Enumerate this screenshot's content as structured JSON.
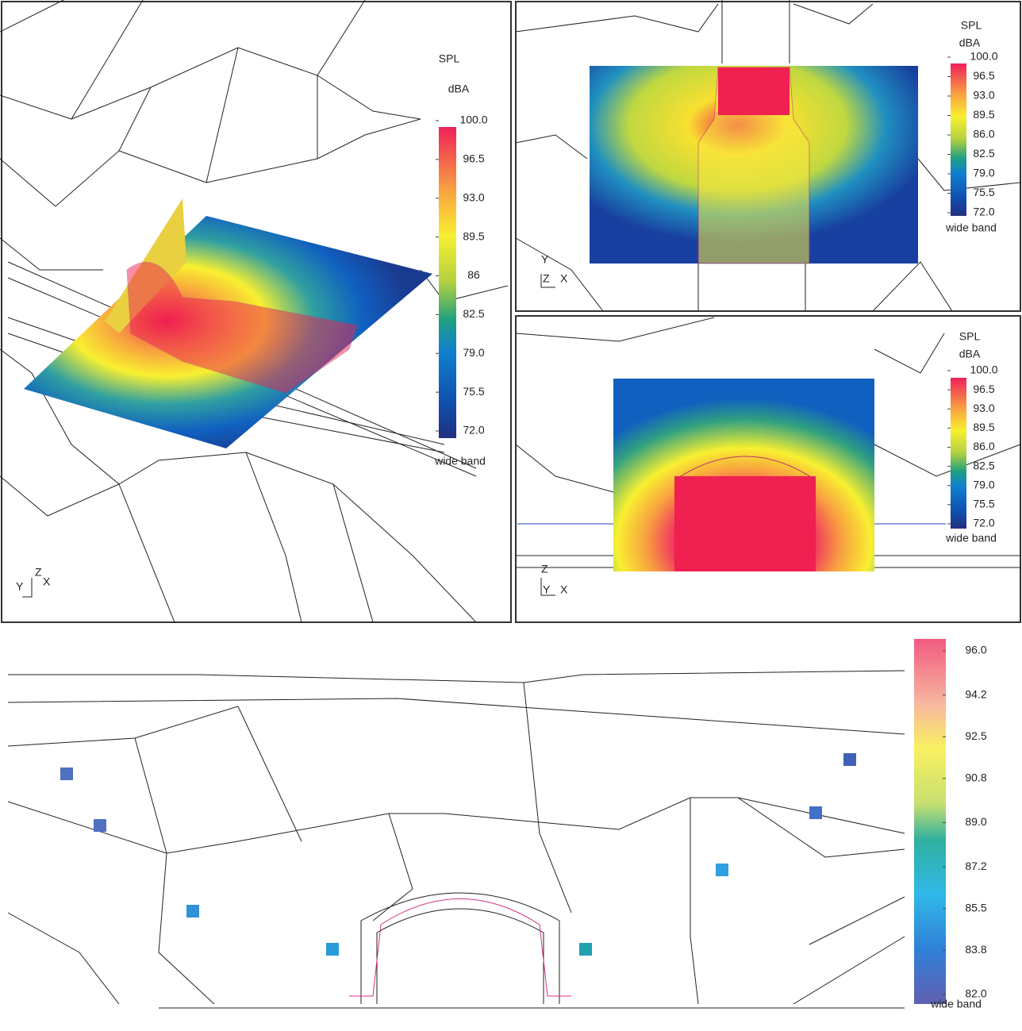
{
  "panels": [
    {
      "legend": {
        "title": "SPL",
        "unit": "dBA",
        "footer": "wide band",
        "ticks": [
          {
            "value": 100,
            "label": "100.0"
          },
          {
            "value": 96.5,
            "label": "96.5"
          },
          {
            "value": 93,
            "label": "93.0"
          },
          {
            "value": 89.5,
            "label": "89.5"
          },
          86,
          {
            "value": 82.5,
            "label": "82.5"
          },
          {
            "value": 79,
            "label": "79.0"
          },
          {
            "value": 75.5,
            "label": "75.5"
          },
          {
            "value": 72,
            "label": "72.0"
          }
        ]
      },
      "axes": {
        "first": "Y",
        "up": "Z",
        "second": "X"
      }
    },
    {
      "legend": {
        "title": "SPL",
        "unit": "dBA",
        "footer": "wide band",
        "ticks": [
          {
            "value": 100,
            "label": "100.0"
          },
          {
            "value": 96.5,
            "label": "96.5"
          },
          {
            "value": 93,
            "label": "93.0"
          },
          {
            "value": 89.5,
            "label": "89.5"
          },
          {
            "value": 86,
            "label": "86.0"
          },
          {
            "value": 82.5,
            "label": "82.5"
          },
          {
            "value": 79,
            "label": "79.0"
          },
          {
            "value": 75.5,
            "label": "75.5"
          },
          {
            "value": 72,
            "label": "72.0"
          }
        ]
      },
      "axes": {
        "first": "Y",
        "up": "Z",
        "second": "X"
      }
    },
    {
      "legend": {
        "title": "SPL",
        "unit": "dBA",
        "footer": "wide band",
        "ticks": [
          {
            "value": 100,
            "label": "100.0"
          },
          {
            "value": 96.5,
            "label": "96.5"
          },
          {
            "value": 93,
            "label": "93.0"
          },
          {
            "value": 89.5,
            "label": "89.5"
          },
          {
            "value": 86,
            "label": "86.0"
          },
          {
            "value": 82.5,
            "label": "82.5"
          },
          {
            "value": 79,
            "label": "79.0"
          },
          {
            "value": 75.5,
            "label": "75.5"
          },
          {
            "value": 72,
            "label": "72.0"
          }
        ]
      },
      "axes": {
        "first": "Y",
        "up": "Z",
        "second": "X"
      }
    },
    {
      "legend": {
        "footer": "wide band",
        "ticks": [
          {
            "value": 96,
            "label": "96.0"
          },
          94.2,
          92.5,
          90.8,
          {
            "value": 89,
            "label": "89.0"
          },
          87.2,
          85.5,
          83.8,
          {
            "value": 82,
            "label": "82.0"
          }
        ]
      }
    }
  ]
}
